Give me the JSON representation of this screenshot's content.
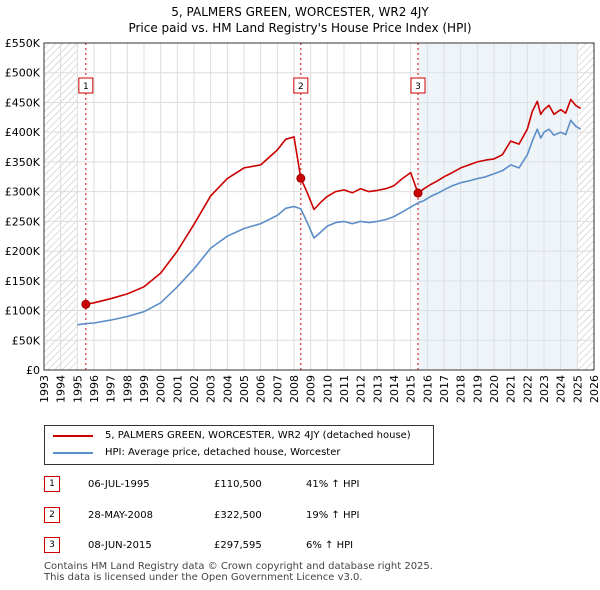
{
  "chart_data": {
    "type": "line",
    "title": "5, PALMERS GREEN, WORCESTER, WR2 4JY",
    "subtitle": "Price paid vs. HM Land Registry's House Price Index (HPI)",
    "xlim": [
      1993.0,
      2026.0
    ],
    "ylim": [
      0,
      550000
    ],
    "y_ticks": [
      0,
      50000,
      100000,
      150000,
      200000,
      250000,
      300000,
      350000,
      400000,
      450000,
      500000,
      550000
    ],
    "y_tick_labels": [
      "£0",
      "£50K",
      "£100K",
      "£150K",
      "£200K",
      "£250K",
      "£300K",
      "£350K",
      "£400K",
      "£450K",
      "£500K",
      "£550K"
    ],
    "x_ticks": [
      1993,
      1994,
      1995,
      1996,
      1997,
      1998,
      1999,
      2000,
      2001,
      2002,
      2003,
      2004,
      2005,
      2006,
      2007,
      2008,
      2009,
      2010,
      2011,
      2012,
      2013,
      2014,
      2015,
      2016,
      2017,
      2018,
      2019,
      2020,
      2021,
      2022,
      2023,
      2024,
      2025,
      2026
    ],
    "hatched_ranges": [
      [
        1993.0,
        1995.0
      ],
      [
        2025.0,
        2026.0
      ]
    ],
    "colors": {
      "price": "#cc0000",
      "hpi": "#5b8ec8",
      "shade": "#dce6f2",
      "hatch": "#bbbbbb",
      "grid": "#dddddd"
    },
    "series": [
      {
        "name": "5, PALMERS GREEN, WORCESTER, WR2 4JY (detached house)",
        "x": [
          1995.51,
          1996.0,
          1997.0,
          1998.0,
          1999.0,
          2000.0,
          2001.0,
          2002.0,
          2003.0,
          2004.0,
          2005.0,
          2006.0,
          2007.0,
          2007.5,
          2008.0,
          2008.41,
          2008.8,
          2009.2,
          2009.6,
          2010.0,
          2010.5,
          2011.0,
          2011.5,
          2012.0,
          2012.5,
          2013.0,
          2013.5,
          2014.0,
          2014.5,
          2015.0,
          2015.44,
          2015.8,
          2016.2,
          2016.6,
          2017.0,
          2017.5,
          2018.0,
          2018.5,
          2019.0,
          2019.5,
          2020.0,
          2020.5,
          2021.0,
          2021.5,
          2022.0,
          2022.3,
          2022.6,
          2022.8,
          2023.0,
          2023.3,
          2023.6,
          2024.0,
          2024.3,
          2024.6,
          2024.9,
          2025.2
        ],
        "values": [
          110500,
          113000,
          120000,
          128000,
          140000,
          163000,
          200000,
          245000,
          293000,
          322000,
          340000,
          345000,
          370000,
          388000,
          392000,
          322500,
          298000,
          270000,
          282000,
          292000,
          300000,
          303000,
          298000,
          305000,
          300000,
          302000,
          305000,
          310000,
          322000,
          332000,
          297595,
          305000,
          312000,
          318000,
          325000,
          332000,
          340000,
          345000,
          350000,
          353000,
          355000,
          362000,
          385000,
          380000,
          405000,
          435000,
          452000,
          430000,
          438000,
          445000,
          430000,
          438000,
          432000,
          455000,
          445000,
          440000
        ]
      },
      {
        "name": "HPI: Average price, detached house, Worcester",
        "x": [
          1995.0,
          1995.51,
          1996.0,
          1997.0,
          1998.0,
          1999.0,
          2000.0,
          2001.0,
          2002.0,
          2003.0,
          2004.0,
          2005.0,
          2006.0,
          2007.0,
          2007.5,
          2008.0,
          2008.41,
          2008.8,
          2009.2,
          2009.6,
          2010.0,
          2010.5,
          2011.0,
          2011.5,
          2012.0,
          2012.5,
          2013.0,
          2013.5,
          2014.0,
          2014.5,
          2015.0,
          2015.44,
          2015.8,
          2016.2,
          2016.6,
          2017.0,
          2017.5,
          2018.0,
          2018.5,
          2019.0,
          2019.5,
          2020.0,
          2020.5,
          2021.0,
          2021.5,
          2022.0,
          2022.3,
          2022.6,
          2022.8,
          2023.0,
          2023.3,
          2023.6,
          2024.0,
          2024.3,
          2024.6,
          2024.9,
          2025.2
        ],
        "values": [
          76000,
          78000,
          79000,
          84000,
          90000,
          98000,
          113000,
          140000,
          170000,
          205000,
          225000,
          238000,
          246000,
          260000,
          272000,
          275000,
          271000,
          248000,
          222000,
          232000,
          242000,
          248000,
          250000,
          246000,
          250000,
          248000,
          250000,
          253000,
          258000,
          266000,
          274000,
          281000,
          285000,
          292000,
          297000,
          303000,
          310000,
          315000,
          318000,
          322000,
          325000,
          330000,
          335000,
          345000,
          340000,
          362000,
          385000,
          405000,
          390000,
          400000,
          405000,
          395000,
          400000,
          396000,
          420000,
          410000,
          405000
        ]
      }
    ],
    "sales": [
      {
        "label": "1",
        "x": 1995.51,
        "value": 110500
      },
      {
        "label": "2",
        "x": 2008.41,
        "value": 322500
      },
      {
        "label": "3",
        "x": 2015.44,
        "value": 297595
      }
    ]
  },
  "legend": {
    "price_label": "5, PALMERS GREEN, WORCESTER, WR2 4JY (detached house)",
    "hpi_label": "HPI: Average price, detached house, Worcester"
  },
  "table": [
    {
      "num": "1",
      "date": "06-JUL-1995",
      "price": "£110,500",
      "hpi": "41% ↑ HPI"
    },
    {
      "num": "2",
      "date": "28-MAY-2008",
      "price": "£322,500",
      "hpi": "19% ↑ HPI"
    },
    {
      "num": "3",
      "date": "08-JUN-2015",
      "price": "£297,595",
      "hpi": "6% ↑ HPI"
    }
  ],
  "footer": "Contains HM Land Registry data © Crown copyright and database right 2025.\nThis data is licensed under the Open Government Licence v3.0."
}
